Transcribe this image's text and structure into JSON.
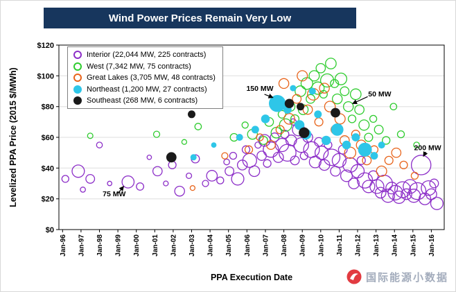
{
  "watermark": {
    "text": "国际能源小数据"
  },
  "chart_data": {
    "type": "scatter",
    "subtype": "bubble",
    "title": "Wind Power Prices Remain Very Low",
    "xlabel": "PPA Execution Date",
    "ylabel": "Levelized PPA Price (2015 $/MWh)",
    "x_ticks": [
      "Jan-96",
      "Jan-97",
      "Jan-98",
      "Jan-99",
      "Jan-00",
      "Jan-01",
      "Jan-02",
      "Jan-03",
      "Jan-04",
      "Jan-05",
      "Jan-06",
      "Jan-07",
      "Jan-08",
      "Jan-09",
      "Jan-10",
      "Jan-11",
      "Jan-12",
      "Jan-13",
      "Jan-14",
      "Jan-15",
      "Jan-16"
    ],
    "y_ticks": [
      "$0",
      "$20",
      "$40",
      "$60",
      "$80",
      "$100",
      "$120"
    ],
    "xlim": [
      1995.8,
      2016.7
    ],
    "ylim": [
      0,
      120
    ],
    "grid": true,
    "legend_position": "top-left",
    "point_format": [
      "year_decimal",
      "price_2015_usd_per_mwh",
      "contract_mw_bubble_size"
    ],
    "series": [
      {
        "name": "Interior",
        "label": "Interior (22,044 MW, 225 contracts)",
        "color": "#8C2EC8",
        "filled": false,
        "points": [
          [
            1996.15,
            33,
            25
          ],
          [
            1996.85,
            38,
            80
          ],
          [
            1997.1,
            26,
            14
          ],
          [
            1997.5,
            33,
            40
          ],
          [
            1998.0,
            55,
            18
          ],
          [
            1998.55,
            30,
            10
          ],
          [
            1999.55,
            31,
            75
          ],
          [
            2000.2,
            28,
            28
          ],
          [
            2000.7,
            47,
            10
          ],
          [
            2001.15,
            38,
            45
          ],
          [
            2001.6,
            30,
            12
          ],
          [
            2001.95,
            42,
            30
          ],
          [
            2002.35,
            25,
            50
          ],
          [
            2002.85,
            35,
            15
          ],
          [
            2003.2,
            46,
            35
          ],
          [
            2003.75,
            30,
            20
          ],
          [
            2004.1,
            35,
            60
          ],
          [
            2004.55,
            32,
            25
          ],
          [
            2004.9,
            44,
            18
          ],
          [
            2005.05,
            38,
            40
          ],
          [
            2005.25,
            48,
            25
          ],
          [
            2005.5,
            33,
            80
          ],
          [
            2005.75,
            42,
            50
          ],
          [
            2005.95,
            52,
            30
          ],
          [
            2006.15,
            45,
            100
          ],
          [
            2006.4,
            38,
            60
          ],
          [
            2006.6,
            55,
            20
          ],
          [
            2006.8,
            48,
            45
          ],
          [
            2006.95,
            58,
            70
          ],
          [
            2007.1,
            43,
            30
          ],
          [
            2007.3,
            52,
            120
          ],
          [
            2007.5,
            60,
            40
          ],
          [
            2007.7,
            47,
            55
          ],
          [
            2007.9,
            55,
            90
          ],
          [
            2008.05,
            62,
            35
          ],
          [
            2008.2,
            50,
            150
          ],
          [
            2008.4,
            58,
            60
          ],
          [
            2008.5,
            70,
            20
          ],
          [
            2008.6,
            45,
            40
          ],
          [
            2008.8,
            65,
            80
          ],
          [
            2008.95,
            55,
            110
          ],
          [
            2009.1,
            48,
            30
          ],
          [
            2009.3,
            60,
            50
          ],
          [
            2009.5,
            52,
            130
          ],
          [
            2009.7,
            44,
            70
          ],
          [
            2009.9,
            57,
            40
          ],
          [
            2010.05,
            50,
            90
          ],
          [
            2010.2,
            42,
            60
          ],
          [
            2010.4,
            55,
            30
          ],
          [
            2010.6,
            47,
            140
          ],
          [
            2010.8,
            38,
            50
          ],
          [
            2011.0,
            45,
            100
          ],
          [
            2011.2,
            52,
            40
          ],
          [
            2011.4,
            35,
            70
          ],
          [
            2011.6,
            42,
            110
          ],
          [
            2011.8,
            30,
            60
          ],
          [
            2012.0,
            38,
            90
          ],
          [
            2012.2,
            45,
            35
          ],
          [
            2012.4,
            32,
            120
          ],
          [
            2012.6,
            28,
            80
          ],
          [
            2012.85,
            35,
            50
          ],
          [
            2013.05,
            28,
            100
          ],
          [
            2013.25,
            24,
            60
          ],
          [
            2013.45,
            30,
            140
          ],
          [
            2013.65,
            22,
            90
          ],
          [
            2013.85,
            27,
            70
          ],
          [
            2014.05,
            24,
            110
          ],
          [
            2014.25,
            21,
            80
          ],
          [
            2014.45,
            26,
            130
          ],
          [
            2014.65,
            23,
            60
          ],
          [
            2014.85,
            28,
            100
          ],
          [
            2015.05,
            22,
            90
          ],
          [
            2015.25,
            25,
            150
          ],
          [
            2015.45,
            42,
            200
          ],
          [
            2015.65,
            20,
            70
          ],
          [
            2015.85,
            27,
            110
          ],
          [
            2016.0,
            23,
            60
          ],
          [
            2016.15,
            30,
            40
          ],
          [
            2016.3,
            17,
            80
          ]
        ]
      },
      {
        "name": "West",
        "label": "West (7,342 MW, 75 contracts)",
        "color": "#2ECC2E",
        "filled": false,
        "points": [
          [
            1997.5,
            61,
            15
          ],
          [
            2001.1,
            62,
            20
          ],
          [
            2002.6,
            57,
            12
          ],
          [
            2003.35,
            67,
            22
          ],
          [
            2005.3,
            60,
            30
          ],
          [
            2005.9,
            68,
            20
          ],
          [
            2006.3,
            62,
            50
          ],
          [
            2006.9,
            58,
            35
          ],
          [
            2007.2,
            70,
            40
          ],
          [
            2007.6,
            63,
            60
          ],
          [
            2007.9,
            75,
            30
          ],
          [
            2008.1,
            68,
            80
          ],
          [
            2008.35,
            80,
            45
          ],
          [
            2008.6,
            72,
            35
          ],
          [
            2008.9,
            90,
            60
          ],
          [
            2009.05,
            78,
            50
          ],
          [
            2009.25,
            95,
            70
          ],
          [
            2009.45,
            85,
            40
          ],
          [
            2009.65,
            100,
            55
          ],
          [
            2009.85,
            92,
            80
          ],
          [
            2010.0,
            105,
            45
          ],
          [
            2010.15,
            88,
            30
          ],
          [
            2010.35,
            97,
            90
          ],
          [
            2010.55,
            108,
            60
          ],
          [
            2010.75,
            95,
            35
          ],
          [
            2010.9,
            85,
            50
          ],
          [
            2011.1,
            98,
            70
          ],
          [
            2011.3,
            90,
            40
          ],
          [
            2011.5,
            80,
            50
          ],
          [
            2011.7,
            72,
            30
          ],
          [
            2011.9,
            88,
            60
          ],
          [
            2012.1,
            78,
            45
          ],
          [
            2012.35,
            68,
            55
          ],
          [
            2012.6,
            60,
            35
          ],
          [
            2012.85,
            72,
            25
          ],
          [
            2013.15,
            65,
            40
          ],
          [
            2013.55,
            58,
            30
          ],
          [
            2013.95,
            80,
            22
          ],
          [
            2014.35,
            62,
            25
          ],
          [
            2015.2,
            55,
            18
          ]
        ]
      },
      {
        "name": "Great Lakes",
        "label": "Great Lakes (3,705 MW, 48 contracts)",
        "color": "#E8641B",
        "filled": false,
        "points": [
          [
            2003.05,
            27,
            12
          ],
          [
            2004.8,
            48,
            20
          ],
          [
            2006.1,
            52,
            30
          ],
          [
            2006.7,
            60,
            25
          ],
          [
            2007.3,
            55,
            40
          ],
          [
            2007.8,
            65,
            35
          ],
          [
            2008.0,
            95,
            50
          ],
          [
            2008.3,
            72,
            60
          ],
          [
            2008.7,
            85,
            40
          ],
          [
            2009.0,
            100,
            55
          ],
          [
            2009.3,
            78,
            45
          ],
          [
            2009.6,
            88,
            70
          ],
          [
            2009.9,
            70,
            35
          ],
          [
            2010.2,
            92,
            50
          ],
          [
            2010.5,
            80,
            60
          ],
          [
            2010.8,
            65,
            40
          ],
          [
            2011.05,
            72,
            55
          ],
          [
            2011.3,
            58,
            45
          ],
          [
            2011.6,
            50,
            65
          ],
          [
            2011.9,
            62,
            35
          ],
          [
            2012.2,
            55,
            50
          ],
          [
            2012.5,
            45,
            40
          ],
          [
            2012.9,
            52,
            30
          ],
          [
            2013.3,
            38,
            55
          ],
          [
            2013.7,
            45,
            35
          ],
          [
            2014.1,
            50,
            45
          ],
          [
            2014.5,
            42,
            30
          ],
          [
            2015.1,
            35,
            25
          ]
        ]
      },
      {
        "name": "Northeast",
        "label": "Northeast (1,200 MW, 27 contracts)",
        "color": "#2EC6E8",
        "filled": true,
        "points": [
          [
            2003.1,
            47,
            20
          ],
          [
            2004.2,
            55,
            15
          ],
          [
            2005.6,
            60,
            25
          ],
          [
            2006.45,
            65,
            30
          ],
          [
            2007.0,
            72,
            40
          ],
          [
            2007.65,
            82,
            150
          ],
          [
            2008.2,
            78,
            35
          ],
          [
            2008.5,
            92,
            20
          ],
          [
            2008.85,
            68,
            50
          ],
          [
            2009.2,
            62,
            60
          ],
          [
            2009.55,
            90,
            25
          ],
          [
            2009.85,
            75,
            30
          ],
          [
            2010.3,
            58,
            45
          ],
          [
            2010.9,
            65,
            80
          ],
          [
            2011.4,
            55,
            40
          ],
          [
            2011.9,
            60,
            35
          ],
          [
            2012.4,
            52,
            100
          ],
          [
            2012.9,
            48,
            30
          ],
          [
            2013.3,
            55,
            25
          ]
        ]
      },
      {
        "name": "Southeast",
        "label": "Southeast (268 MW, 6 contracts)",
        "color": "#1A1A1A",
        "filled": true,
        "points": [
          [
            2001.9,
            47,
            55
          ],
          [
            2003.0,
            75,
            30
          ],
          [
            2008.3,
            82,
            45
          ],
          [
            2008.9,
            80,
            30
          ],
          [
            2009.1,
            63,
            60
          ],
          [
            2010.8,
            76,
            48
          ]
        ]
      }
    ],
    "annotations": [
      {
        "label": "150 MW",
        "text": [
          2006.7,
          91.5
        ],
        "from": [
          2006.95,
          88.0
        ],
        "to": [
          2007.42,
          85.8
        ]
      },
      {
        "label": "50 MW",
        "text": [
          2013.2,
          88.0
        ],
        "from": [
          2012.55,
          86.5
        ],
        "to": [
          2011.72,
          81.9
        ]
      },
      {
        "label": "200 MW",
        "text": [
          2015.8,
          53.0
        ],
        "from": [
          2015.7,
          50.5
        ],
        "to": [
          2015.57,
          47.6
        ]
      },
      {
        "label": "75 MW",
        "text": [
          1998.8,
          23.0
        ],
        "from": [
          1999.0,
          23.5
        ],
        "to": [
          1999.32,
          28.2
        ]
      }
    ]
  }
}
